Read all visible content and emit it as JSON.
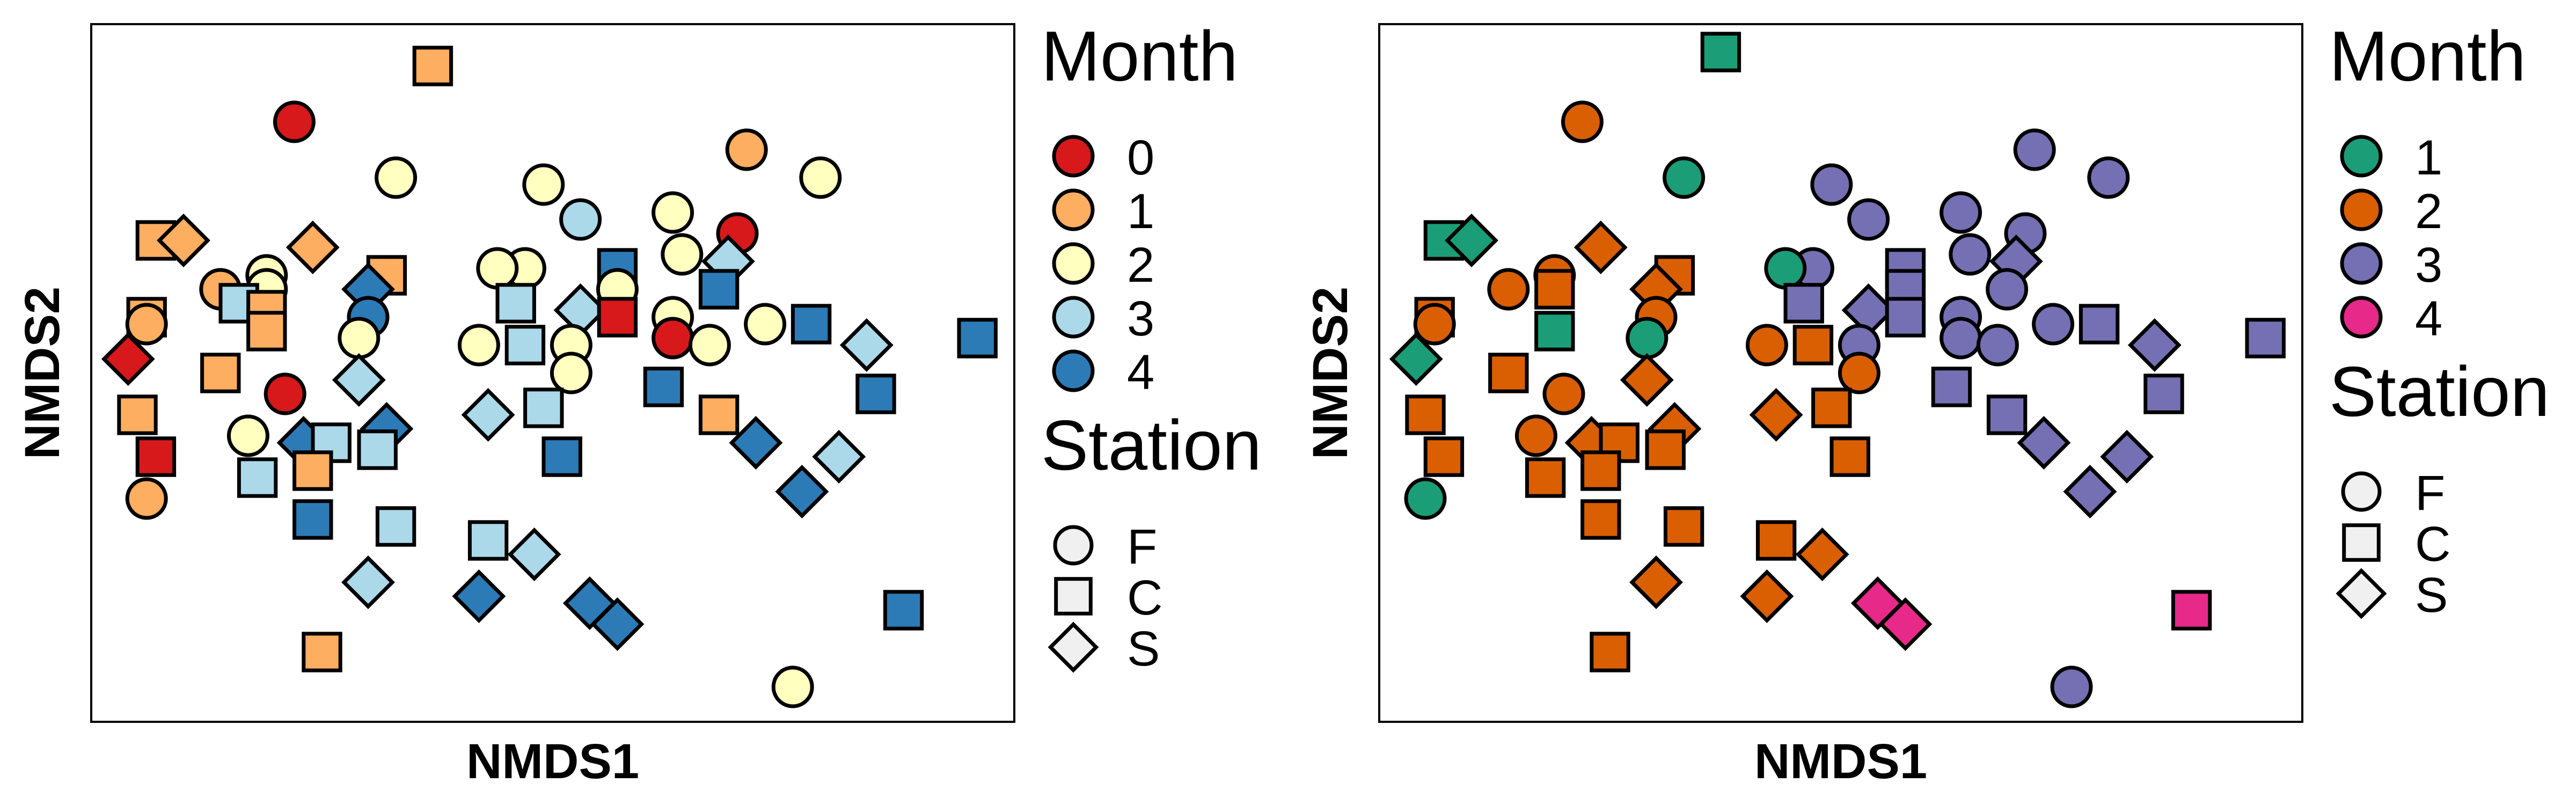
{
  "chart_data": [
    {
      "type": "scatter",
      "xlabel": "NMDS1",
      "ylabel": "NMDS2",
      "legend_placement": "right",
      "month_legend": {
        "title": "Month",
        "entries": [
          {
            "label": "0",
            "color": "#D7191C"
          },
          {
            "label": "1",
            "color": "#FDAE61"
          },
          {
            "label": "2",
            "color": "#FFFFBF"
          },
          {
            "label": "3",
            "color": "#ABD9E9"
          },
          {
            "label": "4",
            "color": "#2C7BB6"
          }
        ]
      },
      "station_legend": {
        "title": "Station",
        "entries": [
          {
            "label": "F",
            "shape": "circle"
          },
          {
            "label": "C",
            "shape": "square"
          },
          {
            "label": "S",
            "shape": "diamond"
          }
        ]
      },
      "points": [
        {
          "x": 0.37,
          "y": 0.06,
          "month": "1",
          "station": "C"
        },
        {
          "x": 0.22,
          "y": 0.14,
          "month": "0",
          "station": "F"
        },
        {
          "x": 0.71,
          "y": 0.18,
          "month": "1",
          "station": "F"
        },
        {
          "x": 0.33,
          "y": 0.22,
          "month": "2",
          "station": "F"
        },
        {
          "x": 0.49,
          "y": 0.23,
          "month": "2",
          "station": "F"
        },
        {
          "x": 0.79,
          "y": 0.22,
          "month": "2",
          "station": "F"
        },
        {
          "x": 0.63,
          "y": 0.27,
          "month": "2",
          "station": "F"
        },
        {
          "x": 0.53,
          "y": 0.28,
          "month": "3",
          "station": "F"
        },
        {
          "x": 0.7,
          "y": 0.3,
          "month": "0",
          "station": "F"
        },
        {
          "x": 0.07,
          "y": 0.31,
          "month": "1",
          "station": "C"
        },
        {
          "x": 0.1,
          "y": 0.31,
          "month": "1",
          "station": "S"
        },
        {
          "x": 0.24,
          "y": 0.32,
          "month": "1",
          "station": "S"
        },
        {
          "x": 0.64,
          "y": 0.33,
          "month": "2",
          "station": "F"
        },
        {
          "x": 0.47,
          "y": 0.35,
          "month": "2",
          "station": "F"
        },
        {
          "x": 0.44,
          "y": 0.35,
          "month": "2",
          "station": "F"
        },
        {
          "x": 0.69,
          "y": 0.34,
          "month": "3",
          "station": "S"
        },
        {
          "x": 0.57,
          "y": 0.35,
          "month": "4",
          "station": "C"
        },
        {
          "x": 0.19,
          "y": 0.36,
          "month": "2",
          "station": "F"
        },
        {
          "x": 0.32,
          "y": 0.36,
          "month": "1",
          "station": "C"
        },
        {
          "x": 0.14,
          "y": 0.38,
          "month": "1",
          "station": "F"
        },
        {
          "x": 0.19,
          "y": 0.38,
          "month": "2",
          "station": "F"
        },
        {
          "x": 0.3,
          "y": 0.38,
          "month": "4",
          "station": "S"
        },
        {
          "x": 0.57,
          "y": 0.38,
          "month": "2",
          "station": "F"
        },
        {
          "x": 0.68,
          "y": 0.38,
          "month": "4",
          "station": "C"
        },
        {
          "x": 0.16,
          "y": 0.4,
          "month": "3",
          "station": "C"
        },
        {
          "x": 0.19,
          "y": 0.41,
          "month": "1",
          "station": "C"
        },
        {
          "x": 0.46,
          "y": 0.4,
          "month": "3",
          "station": "C"
        },
        {
          "x": 0.53,
          "y": 0.41,
          "month": "3",
          "station": "S"
        },
        {
          "x": 0.06,
          "y": 0.42,
          "month": "1",
          "station": "C"
        },
        {
          "x": 0.3,
          "y": 0.42,
          "month": "4",
          "station": "F"
        },
        {
          "x": 0.57,
          "y": 0.42,
          "month": "0",
          "station": "C"
        },
        {
          "x": 0.73,
          "y": 0.43,
          "month": "2",
          "station": "F"
        },
        {
          "x": 0.63,
          "y": 0.42,
          "month": "2",
          "station": "F"
        },
        {
          "x": 0.06,
          "y": 0.43,
          "month": "1",
          "station": "F"
        },
        {
          "x": 0.78,
          "y": 0.43,
          "month": "4",
          "station": "C"
        },
        {
          "x": 0.19,
          "y": 0.44,
          "month": "1",
          "station": "C"
        },
        {
          "x": 0.29,
          "y": 0.45,
          "month": "2",
          "station": "F"
        },
        {
          "x": 0.42,
          "y": 0.46,
          "month": "2",
          "station": "F"
        },
        {
          "x": 0.47,
          "y": 0.46,
          "month": "3",
          "station": "C"
        },
        {
          "x": 0.52,
          "y": 0.46,
          "month": "2",
          "station": "F"
        },
        {
          "x": 0.63,
          "y": 0.45,
          "month": "0",
          "station": "F"
        },
        {
          "x": 0.67,
          "y": 0.46,
          "month": "2",
          "station": "F"
        },
        {
          "x": 0.84,
          "y": 0.46,
          "month": "3",
          "station": "S"
        },
        {
          "x": 0.96,
          "y": 0.45,
          "month": "4",
          "station": "C"
        },
        {
          "x": 0.04,
          "y": 0.48,
          "month": "0",
          "station": "S"
        },
        {
          "x": 0.14,
          "y": 0.5,
          "month": "1",
          "station": "C"
        },
        {
          "x": 0.52,
          "y": 0.5,
          "month": "2",
          "station": "F"
        },
        {
          "x": 0.29,
          "y": 0.51,
          "month": "3",
          "station": "S"
        },
        {
          "x": 0.62,
          "y": 0.52,
          "month": "4",
          "station": "C"
        },
        {
          "x": 0.21,
          "y": 0.53,
          "month": "0",
          "station": "F"
        },
        {
          "x": 0.85,
          "y": 0.53,
          "month": "4",
          "station": "C"
        },
        {
          "x": 0.49,
          "y": 0.55,
          "month": "3",
          "station": "C"
        },
        {
          "x": 0.43,
          "y": 0.56,
          "month": "3",
          "station": "S"
        },
        {
          "x": 0.68,
          "y": 0.56,
          "month": "1",
          "station": "C"
        },
        {
          "x": 0.05,
          "y": 0.56,
          "month": "1",
          "station": "C"
        },
        {
          "x": 0.32,
          "y": 0.58,
          "month": "4",
          "station": "S"
        },
        {
          "x": 0.17,
          "y": 0.59,
          "month": "2",
          "station": "F"
        },
        {
          "x": 0.23,
          "y": 0.6,
          "month": "4",
          "station": "S"
        },
        {
          "x": 0.26,
          "y": 0.6,
          "month": "3",
          "station": "C"
        },
        {
          "x": 0.31,
          "y": 0.61,
          "month": "3",
          "station": "C"
        },
        {
          "x": 0.72,
          "y": 0.6,
          "month": "4",
          "station": "S"
        },
        {
          "x": 0.07,
          "y": 0.62,
          "month": "0",
          "station": "C"
        },
        {
          "x": 0.51,
          "y": 0.62,
          "month": "4",
          "station": "C"
        },
        {
          "x": 0.81,
          "y": 0.62,
          "month": "3",
          "station": "S"
        },
        {
          "x": 0.24,
          "y": 0.64,
          "month": "1",
          "station": "C"
        },
        {
          "x": 0.18,
          "y": 0.65,
          "month": "3",
          "station": "C"
        },
        {
          "x": 0.77,
          "y": 0.67,
          "month": "4",
          "station": "S"
        },
        {
          "x": 0.06,
          "y": 0.68,
          "month": "1",
          "station": "F"
        },
        {
          "x": 0.24,
          "y": 0.71,
          "month": "4",
          "station": "C"
        },
        {
          "x": 0.33,
          "y": 0.72,
          "month": "3",
          "station": "C"
        },
        {
          "x": 0.43,
          "y": 0.74,
          "month": "3",
          "station": "C"
        },
        {
          "x": 0.48,
          "y": 0.76,
          "month": "3",
          "station": "S"
        },
        {
          "x": 0.3,
          "y": 0.8,
          "month": "3",
          "station": "S"
        },
        {
          "x": 0.42,
          "y": 0.82,
          "month": "4",
          "station": "S"
        },
        {
          "x": 0.54,
          "y": 0.83,
          "month": "4",
          "station": "S"
        },
        {
          "x": 0.57,
          "y": 0.86,
          "month": "4",
          "station": "S"
        },
        {
          "x": 0.88,
          "y": 0.84,
          "month": "4",
          "station": "C"
        },
        {
          "x": 0.25,
          "y": 0.9,
          "month": "1",
          "station": "C"
        },
        {
          "x": 0.76,
          "y": 0.95,
          "month": "2",
          "station": "F"
        }
      ]
    },
    {
      "type": "scatter",
      "xlabel": "NMDS1",
      "ylabel": "NMDS2",
      "legend_placement": "right",
      "month_legend": {
        "title": "Month",
        "entries": [
          {
            "label": "1",
            "color": "#1B9E77"
          },
          {
            "label": "2",
            "color": "#D95F02"
          },
          {
            "label": "3",
            "color": "#7570B3"
          },
          {
            "label": "4",
            "color": "#E7298A"
          }
        ]
      },
      "station_legend": {
        "title": "Station",
        "entries": [
          {
            "label": "F",
            "shape": "circle"
          },
          {
            "label": "C",
            "shape": "square"
          },
          {
            "label": "S",
            "shape": "diamond"
          }
        ]
      },
      "points": [
        {
          "x": 0.37,
          "y": 0.04,
          "month": "1",
          "station": "C"
        },
        {
          "x": 0.22,
          "y": 0.14,
          "month": "2",
          "station": "F"
        },
        {
          "x": 0.33,
          "y": 0.22,
          "month": "1",
          "station": "F"
        },
        {
          "x": 0.71,
          "y": 0.18,
          "month": "3",
          "station": "F"
        },
        {
          "x": 0.79,
          "y": 0.22,
          "month": "3",
          "station": "F"
        },
        {
          "x": 0.49,
          "y": 0.23,
          "month": "3",
          "station": "F"
        },
        {
          "x": 0.53,
          "y": 0.28,
          "month": "3",
          "station": "F"
        },
        {
          "x": 0.63,
          "y": 0.27,
          "month": "3",
          "station": "F"
        },
        {
          "x": 0.7,
          "y": 0.3,
          "month": "3",
          "station": "F"
        },
        {
          "x": 0.07,
          "y": 0.31,
          "month": "1",
          "station": "C"
        },
        {
          "x": 0.1,
          "y": 0.31,
          "month": "1",
          "station": "S"
        },
        {
          "x": 0.24,
          "y": 0.32,
          "month": "2",
          "station": "S"
        },
        {
          "x": 0.64,
          "y": 0.33,
          "month": "3",
          "station": "F"
        },
        {
          "x": 0.69,
          "y": 0.34,
          "month": "3",
          "station": "S"
        },
        {
          "x": 0.47,
          "y": 0.35,
          "month": "3",
          "station": "F"
        },
        {
          "x": 0.44,
          "y": 0.35,
          "month": "1",
          "station": "F"
        },
        {
          "x": 0.57,
          "y": 0.35,
          "month": "3",
          "station": "C"
        },
        {
          "x": 0.19,
          "y": 0.36,
          "month": "2",
          "station": "F"
        },
        {
          "x": 0.32,
          "y": 0.36,
          "month": "2",
          "station": "C"
        },
        {
          "x": 0.14,
          "y": 0.38,
          "month": "2",
          "station": "F"
        },
        {
          "x": 0.19,
          "y": 0.38,
          "month": "2",
          "station": "C"
        },
        {
          "x": 0.3,
          "y": 0.38,
          "month": "2",
          "station": "S"
        },
        {
          "x": 0.57,
          "y": 0.38,
          "month": "3",
          "station": "C"
        },
        {
          "x": 0.68,
          "y": 0.38,
          "month": "3",
          "station": "F"
        },
        {
          "x": 0.46,
          "y": 0.4,
          "month": "3",
          "station": "C"
        },
        {
          "x": 0.53,
          "y": 0.41,
          "month": "3",
          "station": "S"
        },
        {
          "x": 0.06,
          "y": 0.42,
          "month": "2",
          "station": "C"
        },
        {
          "x": 0.3,
          "y": 0.42,
          "month": "2",
          "station": "F"
        },
        {
          "x": 0.57,
          "y": 0.42,
          "month": "3",
          "station": "C"
        },
        {
          "x": 0.73,
          "y": 0.43,
          "month": "3",
          "station": "F"
        },
        {
          "x": 0.63,
          "y": 0.42,
          "month": "3",
          "station": "F"
        },
        {
          "x": 0.06,
          "y": 0.43,
          "month": "2",
          "station": "F"
        },
        {
          "x": 0.78,
          "y": 0.43,
          "month": "3",
          "station": "C"
        },
        {
          "x": 0.19,
          "y": 0.44,
          "month": "1",
          "station": "C"
        },
        {
          "x": 0.29,
          "y": 0.45,
          "month": "1",
          "station": "F"
        },
        {
          "x": 0.42,
          "y": 0.46,
          "month": "2",
          "station": "F"
        },
        {
          "x": 0.47,
          "y": 0.46,
          "month": "2",
          "station": "C"
        },
        {
          "x": 0.52,
          "y": 0.46,
          "month": "3",
          "station": "F"
        },
        {
          "x": 0.63,
          "y": 0.45,
          "month": "3",
          "station": "F"
        },
        {
          "x": 0.67,
          "y": 0.46,
          "month": "3",
          "station": "F"
        },
        {
          "x": 0.84,
          "y": 0.46,
          "month": "3",
          "station": "S"
        },
        {
          "x": 0.96,
          "y": 0.45,
          "month": "3",
          "station": "C"
        },
        {
          "x": 0.04,
          "y": 0.48,
          "month": "1",
          "station": "S"
        },
        {
          "x": 0.14,
          "y": 0.5,
          "month": "2",
          "station": "C"
        },
        {
          "x": 0.52,
          "y": 0.5,
          "month": "2",
          "station": "F"
        },
        {
          "x": 0.29,
          "y": 0.51,
          "month": "2",
          "station": "S"
        },
        {
          "x": 0.62,
          "y": 0.52,
          "month": "3",
          "station": "C"
        },
        {
          "x": 0.2,
          "y": 0.53,
          "month": "2",
          "station": "F"
        },
        {
          "x": 0.85,
          "y": 0.53,
          "month": "3",
          "station": "C"
        },
        {
          "x": 0.49,
          "y": 0.55,
          "month": "2",
          "station": "C"
        },
        {
          "x": 0.43,
          "y": 0.56,
          "month": "2",
          "station": "S"
        },
        {
          "x": 0.68,
          "y": 0.56,
          "month": "3",
          "station": "C"
        },
        {
          "x": 0.05,
          "y": 0.56,
          "month": "2",
          "station": "C"
        },
        {
          "x": 0.32,
          "y": 0.58,
          "month": "2",
          "station": "S"
        },
        {
          "x": 0.17,
          "y": 0.59,
          "month": "2",
          "station": "F"
        },
        {
          "x": 0.23,
          "y": 0.6,
          "month": "2",
          "station": "S"
        },
        {
          "x": 0.26,
          "y": 0.6,
          "month": "2",
          "station": "C"
        },
        {
          "x": 0.31,
          "y": 0.61,
          "month": "2",
          "station": "C"
        },
        {
          "x": 0.72,
          "y": 0.6,
          "month": "3",
          "station": "S"
        },
        {
          "x": 0.07,
          "y": 0.62,
          "month": "2",
          "station": "C"
        },
        {
          "x": 0.51,
          "y": 0.62,
          "month": "2",
          "station": "C"
        },
        {
          "x": 0.81,
          "y": 0.62,
          "month": "3",
          "station": "S"
        },
        {
          "x": 0.24,
          "y": 0.64,
          "month": "2",
          "station": "C"
        },
        {
          "x": 0.18,
          "y": 0.65,
          "month": "2",
          "station": "C"
        },
        {
          "x": 0.77,
          "y": 0.67,
          "month": "3",
          "station": "S"
        },
        {
          "x": 0.05,
          "y": 0.68,
          "month": "1",
          "station": "F"
        },
        {
          "x": 0.24,
          "y": 0.71,
          "month": "2",
          "station": "C"
        },
        {
          "x": 0.33,
          "y": 0.72,
          "month": "2",
          "station": "C"
        },
        {
          "x": 0.43,
          "y": 0.74,
          "month": "2",
          "station": "C"
        },
        {
          "x": 0.48,
          "y": 0.76,
          "month": "2",
          "station": "S"
        },
        {
          "x": 0.3,
          "y": 0.8,
          "month": "2",
          "station": "S"
        },
        {
          "x": 0.42,
          "y": 0.82,
          "month": "2",
          "station": "S"
        },
        {
          "x": 0.54,
          "y": 0.83,
          "month": "4",
          "station": "S"
        },
        {
          "x": 0.57,
          "y": 0.86,
          "month": "4",
          "station": "S"
        },
        {
          "x": 0.88,
          "y": 0.84,
          "month": "4",
          "station": "C"
        },
        {
          "x": 0.25,
          "y": 0.9,
          "month": "2",
          "station": "C"
        },
        {
          "x": 0.75,
          "y": 0.95,
          "month": "3",
          "station": "F"
        }
      ]
    }
  ]
}
